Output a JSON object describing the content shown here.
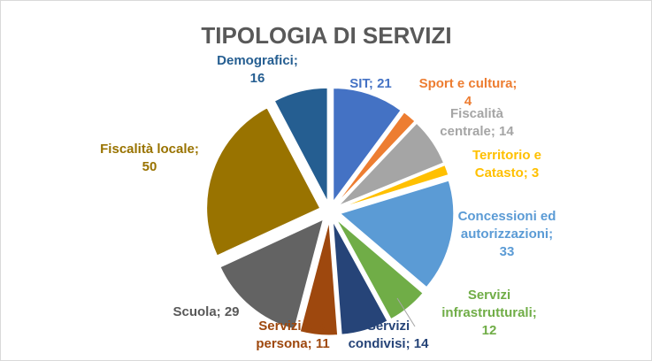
{
  "chart_data": {
    "type": "pie",
    "exploded": true,
    "title": "TIPOLOGIA DI SERVIZI",
    "title_color": "#595959",
    "slices": [
      {
        "name": "SIT",
        "value": 21,
        "color": "#4472C4",
        "label_lines": [
          "SIT; 21"
        ],
        "label_color": "#4472C4"
      },
      {
        "name": "Sport e cultura",
        "value": 4,
        "color": "#ED7D31",
        "label_lines": [
          "Sport e cultura;",
          "4"
        ],
        "label_color": "#ED7D31"
      },
      {
        "name": "Fiscalità centrale",
        "value": 14,
        "color": "#A5A5A5",
        "label_lines": [
          "Fiscalità",
          "centrale; 14"
        ],
        "label_color": "#A5A5A5"
      },
      {
        "name": "Territorio e Catasto",
        "value": 3,
        "color": "#FFC000",
        "label_lines": [
          "Territorio e",
          "Catasto; 3"
        ],
        "label_color": "#FFC000"
      },
      {
        "name": "Concessioni ed autorizzazioni",
        "value": 33,
        "color": "#5B9BD5",
        "label_lines": [
          "Concessioni ed",
          "autorizzazioni;",
          "33"
        ],
        "label_color": "#5B9BD5"
      },
      {
        "name": "Servizi infrastrutturali",
        "value": 12,
        "color": "#70AD47",
        "label_lines": [
          "Servizi",
          "infrastrutturali;",
          "12"
        ],
        "label_color": "#70AD47"
      },
      {
        "name": "Servizi condivisi",
        "value": 14,
        "color": "#264478",
        "label_lines": [
          "Servizi",
          "condivisi; 14"
        ],
        "label_color": "#264478"
      },
      {
        "name": "Servizi alla persona",
        "value": 11,
        "color": "#9E480E",
        "label_lines": [
          "Servizi alla",
          "persona; 11"
        ],
        "label_color": "#9E480E"
      },
      {
        "name": "Scuola",
        "value": 29,
        "color": "#636363",
        "label_lines": [
          "Scuola; 29"
        ],
        "label_color": "#595959"
      },
      {
        "name": "Fiscalità locale",
        "value": 50,
        "color": "#997300",
        "label_lines": [
          "Fiscalità locale;",
          "50"
        ],
        "label_color": "#997300"
      },
      {
        "name": "Demografici",
        "value": 16,
        "color": "#255E91",
        "label_lines": [
          "Demografici;",
          "16"
        ],
        "label_color": "#255E91"
      }
    ]
  }
}
